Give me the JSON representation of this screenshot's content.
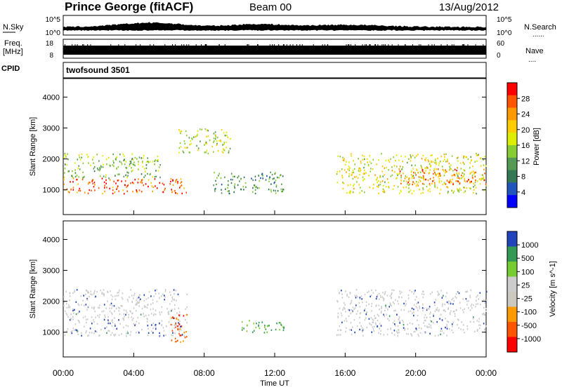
{
  "header": {
    "station": "Prince George (fitACF)",
    "beam": "Beam 00",
    "date": "13/Aug/2012"
  },
  "strips": {
    "nsky": {
      "label": "N.Sky",
      "ticks": [
        "10^5",
        "10^0"
      ]
    },
    "nsearch": {
      "label": "N.Search",
      "ticks": [
        "10^5",
        "10^0"
      ],
      "legend": "......"
    },
    "freq": {
      "label_line1": "Freq.",
      "label_line2": "[MHz]",
      "ticks": [
        "18",
        "8"
      ]
    },
    "nave": {
      "label": "Nave",
      "ticks": [
        "60",
        "0"
      ],
      "legend": "...."
    },
    "cpid": {
      "label": "CPID",
      "program": "twofsound 3501"
    }
  },
  "colors": {
    "power_scale": [
      "#0000ff",
      "#2255bb",
      "#337755",
      "#559955",
      "#88cc33",
      "#ddee00",
      "#ffcc00",
      "#ff9900",
      "#ff5500",
      "#ff0000"
    ],
    "velocity_scale": [
      "#ff0000",
      "#ff5500",
      "#ff9900",
      "#ccc8c0",
      "#cccccc",
      "#77cc33",
      "#339955",
      "#2244bb"
    ],
    "frame": "#000000"
  },
  "chart_data": [
    {
      "type": "heatmap",
      "name": "power",
      "xlabel": "",
      "ylabel": "Slant Range [km]",
      "x_ticks": [
        "00:00",
        "04:00",
        "08:00",
        "12:00",
        "16:00",
        "20:00",
        "00:00"
      ],
      "y_ticks": [
        "1000",
        "2000",
        "3000",
        "4000"
      ],
      "ylim": [
        200,
        4600
      ],
      "colorbar": {
        "label": "Power [dB]",
        "ticks": [
          "4",
          "8",
          "12",
          "16",
          "20",
          "24",
          "28"
        ],
        "range": [
          0,
          32
        ]
      },
      "regions": [
        {
          "t_start": 0.0,
          "t_end": 7.0,
          "range_start": 900,
          "range_end": 1400,
          "value": 28
        },
        {
          "t_start": 0.0,
          "t_end": 5.5,
          "range_start": 1400,
          "range_end": 2200,
          "value": 14
        },
        {
          "t_start": 6.5,
          "t_end": 9.5,
          "range_start": 2200,
          "range_end": 3000,
          "value": 16
        },
        {
          "t_start": 8.5,
          "t_end": 12.5,
          "range_start": 900,
          "range_end": 1600,
          "value": 10
        },
        {
          "t_start": 15.5,
          "t_end": 24.0,
          "range_start": 900,
          "range_end": 2200,
          "value": 18
        },
        {
          "t_start": 19.0,
          "t_end": 24.0,
          "range_start": 1200,
          "range_end": 1700,
          "value": 26
        }
      ]
    },
    {
      "type": "heatmap",
      "name": "velocity",
      "xlabel": "Time UT",
      "ylabel": "Slant Range [km]",
      "x_ticks": [
        "00:00",
        "04:00",
        "08:00",
        "12:00",
        "16:00",
        "20:00",
        "00:00"
      ],
      "y_ticks": [
        "1000",
        "2000",
        "3000",
        "4000"
      ],
      "ylim": [
        200,
        4600
      ],
      "colorbar": {
        "label": "Velocity [m s^-1]",
        "ticks": [
          "-1000",
          "-500",
          "-100",
          "-25",
          "25",
          "100",
          "500",
          "1000"
        ]
      },
      "regions": [
        {
          "t_start": 0.0,
          "t_end": 7.0,
          "range_start": 900,
          "range_end": 2400,
          "value": 0
        },
        {
          "t_start": 6.0,
          "t_end": 7.0,
          "range_start": 700,
          "range_end": 1600,
          "value": -700
        },
        {
          "t_start": 10.0,
          "t_end": 12.5,
          "range_start": 1000,
          "range_end": 1400,
          "value": 300
        },
        {
          "t_start": 15.5,
          "t_end": 24.0,
          "range_start": 900,
          "range_end": 2400,
          "value": 0
        }
      ]
    }
  ]
}
